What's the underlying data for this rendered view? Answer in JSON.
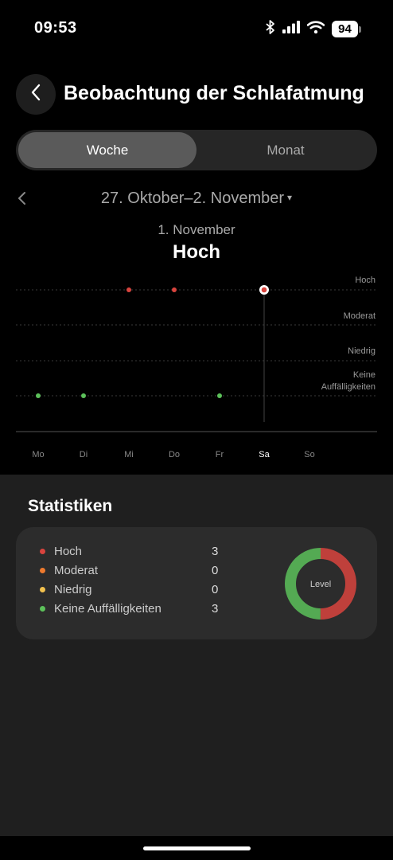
{
  "status_bar": {
    "time": "09:53",
    "battery": "94"
  },
  "header": {
    "title": "Beobachtung der Schlafatmung"
  },
  "segments": {
    "week": "Woche",
    "month": "Monat"
  },
  "range": {
    "label": "27. Oktober–2. November",
    "caret": "▾"
  },
  "selected": {
    "date": "1. November",
    "level": "Hoch"
  },
  "chart_data": {
    "type": "scatter",
    "y_levels": [
      "Hoch",
      "Moderat",
      "Niedrig",
      "Keine Auffälligkeiten"
    ],
    "y_labels": [
      "Hoch",
      "Moderat",
      "Niedrig",
      "Keine",
      "Auffälligkeiten"
    ],
    "x": [
      "Mo",
      "Di",
      "Mi",
      "Do",
      "Fr",
      "Sa",
      "So"
    ],
    "points": [
      {
        "day": "Mo",
        "level": "Keine Auffälligkeiten"
      },
      {
        "day": "Di",
        "level": "Keine Auffälligkeiten"
      },
      {
        "day": "Mi",
        "level": "Hoch"
      },
      {
        "day": "Do",
        "level": "Hoch"
      },
      {
        "day": "Fr",
        "level": "Keine Auffälligkeiten"
      },
      {
        "day": "Sa",
        "level": "Hoch",
        "selected": true
      }
    ],
    "colors": {
      "Hoch": "#d9443e",
      "Keine Auffälligkeiten": "#5cc15a"
    },
    "selected_day": "Sa"
  },
  "stats": {
    "title": "Statistiken",
    "items": [
      {
        "label": "Hoch",
        "count": "3",
        "color": "#d9443e"
      },
      {
        "label": "Moderat",
        "count": "0",
        "color": "#ee7a2e"
      },
      {
        "label": "Niedrig",
        "count": "0",
        "color": "#f2c14e"
      },
      {
        "label": "Keine Auffälligkeiten",
        "count": "3",
        "color": "#5cc15a"
      }
    ],
    "donut_label": "Level",
    "donut_values": [
      {
        "label": "Hoch",
        "value": 3,
        "color": "#d9443e"
      },
      {
        "label": "Keine Auffälligkeiten",
        "value": 3,
        "color": "#5cc15a"
      }
    ]
  }
}
